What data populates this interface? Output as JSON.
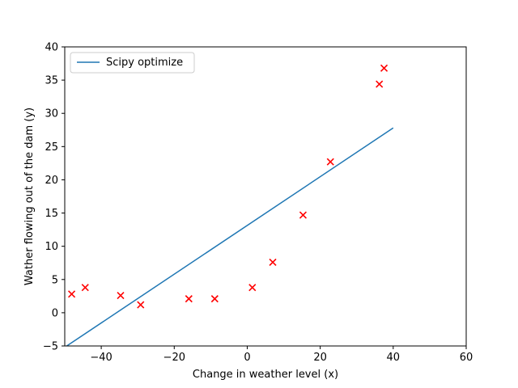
{
  "chart_data": {
    "type": "scatter",
    "title": "",
    "xlabel": "Change in weather level (x)",
    "ylabel": "Wather flowing out of the dam (y)",
    "xlim": [
      -50,
      60
    ],
    "ylim": [
      -5,
      40
    ],
    "xticks": [
      -40,
      -20,
      0,
      20,
      40,
      60
    ],
    "xtick_labels": [
      "−40",
      "−20",
      "0",
      "20",
      "40",
      "60"
    ],
    "yticks": [
      -5,
      0,
      5,
      10,
      15,
      20,
      25,
      30,
      35,
      40
    ],
    "ytick_labels": [
      "−5",
      "0",
      "5",
      "10",
      "15",
      "20",
      "25",
      "30",
      "35",
      "40"
    ],
    "grid": false,
    "legend": {
      "position": "top-left",
      "entries": [
        "Scipy optimize"
      ]
    },
    "series": [
      {
        "name": "",
        "kind": "scatter",
        "marker": "x",
        "color": "#ff0000",
        "points": [
          [
            -48.1,
            2.8
          ],
          [
            -44.4,
            3.8
          ],
          [
            -34.7,
            2.6
          ],
          [
            -29.2,
            1.2
          ],
          [
            -16.0,
            2.1
          ],
          [
            -8.9,
            2.1
          ],
          [
            1.4,
            3.8
          ],
          [
            7.0,
            7.6
          ],
          [
            15.3,
            14.7
          ],
          [
            22.8,
            22.7
          ],
          [
            36.2,
            34.4
          ],
          [
            37.5,
            36.8
          ]
        ]
      },
      {
        "name": "Scipy optimize",
        "kind": "line",
        "color": "#1f77b4",
        "points": [
          [
            -50.0,
            -5.2
          ],
          [
            40.0,
            27.8
          ]
        ]
      }
    ]
  }
}
